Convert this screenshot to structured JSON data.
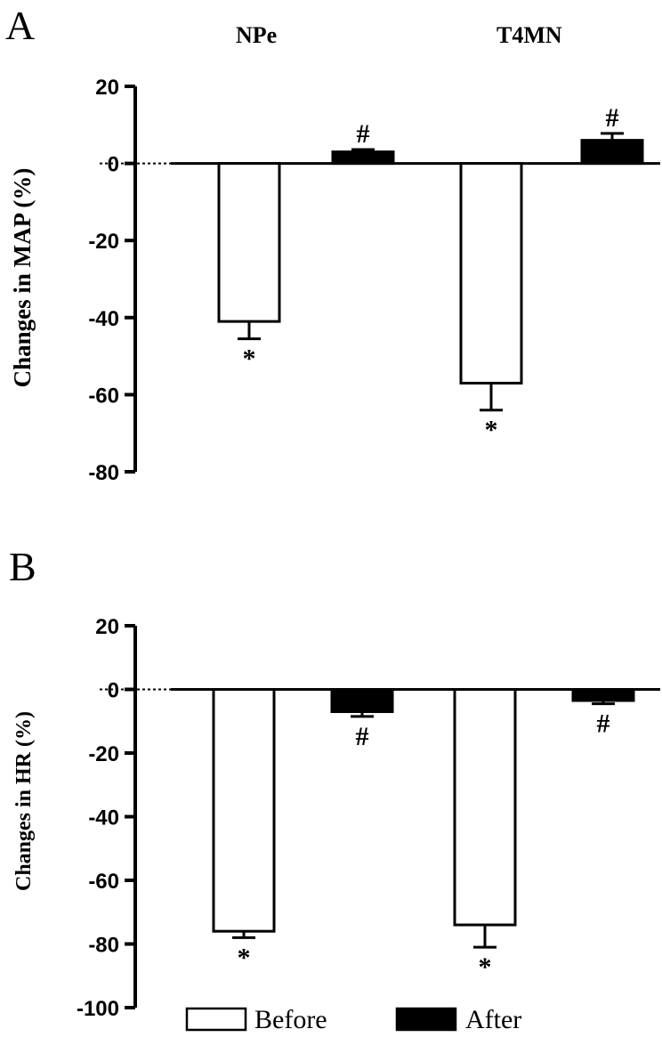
{
  "group_labels": [
    "NPe",
    "T4MN"
  ],
  "legend": {
    "before": "Before",
    "after": "After"
  },
  "chart_data": [
    {
      "panel": "A",
      "type": "bar",
      "ylabel": "Changes in MAP (%)",
      "ylim": [
        -80,
        20
      ],
      "yticks": [
        20,
        0,
        -20,
        -40,
        -60,
        -80
      ],
      "categories": [
        "NPe",
        "T4MN"
      ],
      "series": [
        {
          "name": "Before",
          "values": [
            -41,
            -57
          ],
          "errors": [
            4.5,
            7
          ],
          "marks": [
            "*",
            "*"
          ]
        },
        {
          "name": "After",
          "values": [
            3,
            6
          ],
          "errors": [
            0.6,
            1.8
          ],
          "marks": [
            "#",
            "#"
          ]
        }
      ]
    },
    {
      "panel": "B",
      "type": "bar",
      "ylabel": "Changes in HR (%)",
      "ylim": [
        -100,
        20
      ],
      "yticks": [
        20,
        0,
        -20,
        -40,
        -60,
        -80,
        -100
      ],
      "categories": [
        "NPe",
        "T4MN"
      ],
      "series": [
        {
          "name": "Before",
          "values": [
            -76,
            -74
          ],
          "errors": [
            2,
            7
          ],
          "marks": [
            "*",
            "*"
          ]
        },
        {
          "name": "After",
          "values": [
            -7,
            -3.5
          ],
          "errors": [
            1.5,
            1
          ],
          "marks": [
            "#",
            "#"
          ]
        }
      ]
    }
  ]
}
